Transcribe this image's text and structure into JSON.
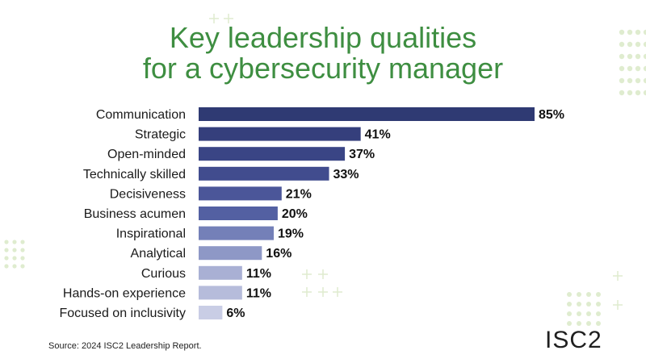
{
  "title_line1": "Key leadership qualities",
  "title_line2": "for a cybersecurity manager",
  "source": "Source: 2024 ISC2 Leadership Report.",
  "logo": "ISC2",
  "colors": {
    "title": "#3e8e41",
    "bars": [
      "#2f3a73",
      "#353f7c",
      "#3a4585",
      "#414c8e",
      "#4b5699",
      "#5360a2",
      "#7480b8",
      "#8e98c6",
      "#a9b0d4",
      "#b6bcdb",
      "#c9cde5"
    ],
    "decor": "#dfeccf"
  },
  "chart_data": {
    "type": "bar",
    "orientation": "horizontal",
    "title": "Key leadership qualities for a cybersecurity manager",
    "categories": [
      "Communication",
      "Strategic",
      "Open-minded",
      "Technically skilled",
      "Decisiveness",
      "Business acumen",
      "Inspirational",
      "Analytical",
      "Curious",
      "Hands-on experience",
      "Focused on inclusivity"
    ],
    "values": [
      85,
      41,
      37,
      33,
      21,
      20,
      19,
      16,
      11,
      11,
      6
    ],
    "value_labels": [
      "85%",
      "41%",
      "37%",
      "33%",
      "21%",
      "20%",
      "19%",
      "16%",
      "11%",
      "11%",
      "6%"
    ],
    "xlim": [
      0,
      85
    ],
    "grid": false,
    "legend": "none"
  }
}
